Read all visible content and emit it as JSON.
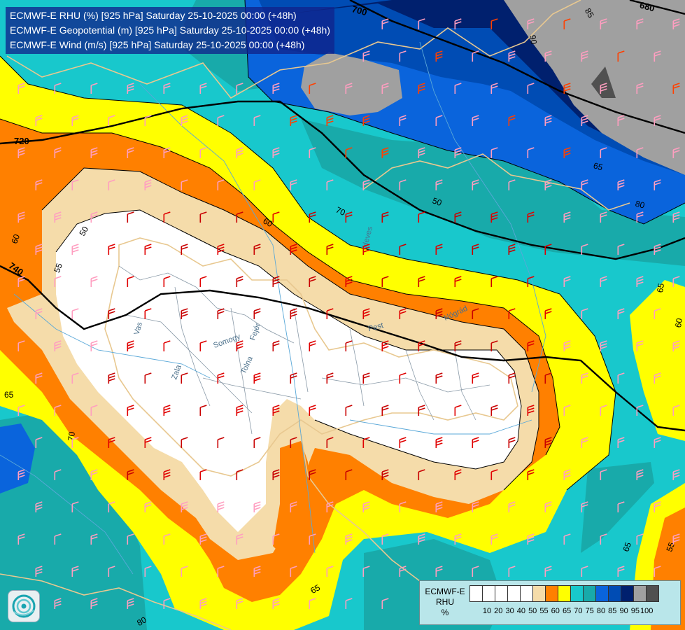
{
  "titles": [
    "ECMWF-E RHU (%) [925 hPa] Saturday 25-10-2025 00:00 (+48h)",
    "ECMWF-E Geopotential (m) [925 hPa] Saturday 25-10-2025 00:00 (+48h)",
    "ECMWF-E Wind (m/s) [925 hPa] Saturday 25-10-2025 00:00 (+48h)"
  ],
  "legend": {
    "title_line1": "ECMWF-E",
    "title_line2": "RHU",
    "title_line3": "%",
    "levels": [
      "10",
      "20",
      "30",
      "40",
      "50",
      "55",
      "60",
      "65",
      "70",
      "75",
      "80",
      "85",
      "90",
      "95",
      "100"
    ],
    "colors": [
      "#ffffff",
      "#ffffff",
      "#ffffff",
      "#ffffff",
      "#ffffff",
      "#f5dcaa",
      "#ff8000",
      "#ffff00",
      "#18c8cc",
      "#18aaaa",
      "#0a64dc",
      "#004cb4",
      "#00206e",
      "#a0a0a0",
      "#505050"
    ]
  },
  "geopotential_labels": [
    "700",
    "680",
    "720",
    "740"
  ],
  "rhu_labels": [
    "50",
    "55",
    "60",
    "60",
    "65",
    "65",
    "70",
    "70",
    "65",
    "60",
    "65",
    "55",
    "65",
    "80",
    "90",
    "85",
    "80",
    "50"
  ],
  "region_labels": [
    "Vas",
    "Zala",
    "Somogy",
    "Tolna",
    "Fejér",
    "Pest",
    "Heves",
    "Nógrád"
  ],
  "colors": {
    "white": "#ffffff",
    "tan": "#f5dcaa",
    "orange": "#ff8000",
    "yellow": "#ffff00",
    "cyan": "#18c8cc",
    "teal": "#18aaaa",
    "blue": "#0a64dc",
    "darkblue": "#004cb4",
    "navy": "#00206e",
    "gray": "#a0a0a0",
    "darkgray": "#505050"
  }
}
